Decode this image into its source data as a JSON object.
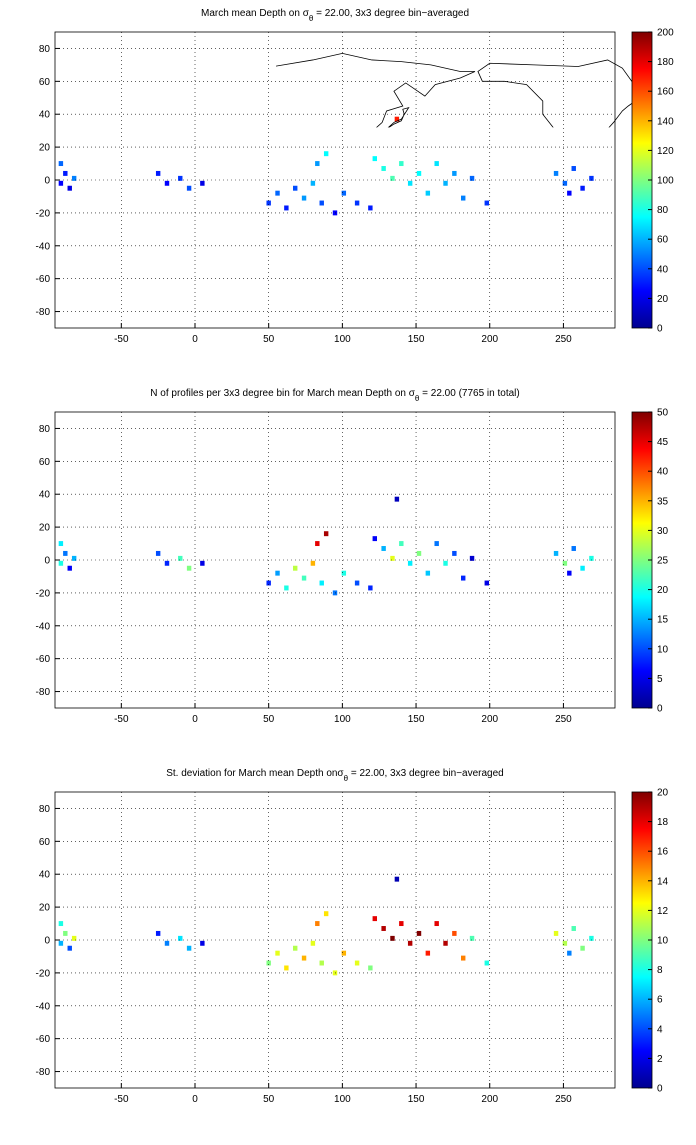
{
  "chart_data": [
    {
      "type": "heatmap",
      "colormap": "jet",
      "title": [
        "March mean Depth on σ",
        "θ",
        " = 22.00, 3x3 degree bin−averaged"
      ],
      "xlim": [
        -95,
        285
      ],
      "ylim": [
        -90,
        90
      ],
      "xticks": [
        -50,
        0,
        50,
        100,
        150,
        200,
        250
      ],
      "yticks": [
        -80,
        -60,
        -40,
        -20,
        0,
        20,
        40,
        60,
        80
      ],
      "grid": true,
      "clim": [
        0,
        200
      ],
      "cticks": [
        0,
        20,
        40,
        60,
        80,
        100,
        120,
        140,
        160,
        180,
        200
      ],
      "x": [
        -91,
        -88,
        -91,
        -85,
        -82,
        -25,
        -19,
        -10,
        -4,
        5,
        50,
        56,
        62,
        68,
        74,
        80,
        83,
        89,
        86,
        95,
        101,
        110,
        119,
        122,
        128,
        134,
        140,
        146,
        152,
        158,
        164,
        170,
        176,
        182,
        188,
        198,
        137,
        245,
        251,
        257,
        263,
        269,
        254
      ],
      "y": [
        10,
        4,
        -2,
        -5,
        1,
        4,
        -2,
        1,
        -5,
        -2,
        -14,
        -8,
        -17,
        -5,
        -11,
        -2,
        10,
        16,
        -14,
        -20,
        -8,
        -14,
        -17,
        13,
        7,
        1,
        10,
        -2,
        4,
        -8,
        10,
        -2,
        4,
        -11,
        1,
        -14,
        37,
        4,
        -2,
        7,
        -5,
        1,
        -8
      ],
      "values": [
        45,
        30,
        25,
        20,
        50,
        30,
        25,
        35,
        40,
        20,
        35,
        45,
        30,
        40,
        55,
        60,
        55,
        75,
        40,
        25,
        45,
        35,
        30,
        75,
        80,
        90,
        85,
        70,
        75,
        65,
        70,
        60,
        55,
        50,
        45,
        35,
        170,
        50,
        45,
        40,
        30,
        35,
        25
      ]
    },
    {
      "type": "heatmap",
      "colormap": "jet",
      "title": [
        "N of profiles per 3x3 degree bin for March mean Depth on σ",
        "θ",
        " = 22.00 (7765 in total)"
      ],
      "xlim": [
        -95,
        285
      ],
      "ylim": [
        -90,
        90
      ],
      "xticks": [
        -50,
        0,
        50,
        100,
        150,
        200,
        250
      ],
      "yticks": [
        -80,
        -60,
        -40,
        -20,
        0,
        20,
        40,
        60,
        80
      ],
      "grid": true,
      "clim": [
        0,
        50
      ],
      "cticks": [
        0,
        5,
        10,
        15,
        20,
        25,
        30,
        35,
        40,
        45,
        50
      ],
      "x": [
        -91,
        -88,
        -91,
        -85,
        -82,
        -25,
        -19,
        -10,
        -4,
        5,
        50,
        56,
        62,
        68,
        74,
        80,
        83,
        89,
        86,
        95,
        101,
        110,
        119,
        122,
        128,
        134,
        140,
        146,
        152,
        158,
        164,
        170,
        176,
        182,
        188,
        198,
        137,
        245,
        251,
        257,
        263,
        269,
        254
      ],
      "y": [
        10,
        4,
        -2,
        -5,
        1,
        4,
        -2,
        1,
        -5,
        -2,
        -14,
        -8,
        -17,
        -5,
        -11,
        -2,
        10,
        16,
        -14,
        -20,
        -8,
        -14,
        -17,
        13,
        7,
        1,
        10,
        -2,
        4,
        -8,
        10,
        -2,
        4,
        -11,
        1,
        -14,
        37,
        4,
        -2,
        7,
        -5,
        1,
        -8
      ],
      "values": [
        18,
        12,
        20,
        6,
        15,
        10,
        8,
        22,
        25,
        5,
        8,
        14,
        20,
        28,
        22,
        35,
        45,
        48,
        18,
        12,
        20,
        10,
        8,
        6,
        15,
        30,
        22,
        18,
        25,
        16,
        12,
        20,
        10,
        8,
        4,
        5,
        3,
        15,
        25,
        12,
        18,
        20,
        6
      ]
    },
    {
      "type": "heatmap",
      "colormap": "jet",
      "title": [
        "St. deviation for March mean Depth onσ",
        "θ",
        " = 22.00, 3x3 degree bin−averaged"
      ],
      "xlim": [
        -95,
        285
      ],
      "ylim": [
        -90,
        90
      ],
      "xticks": [
        -50,
        0,
        50,
        100,
        150,
        200,
        250
      ],
      "yticks": [
        -80,
        -60,
        -40,
        -20,
        0,
        20,
        40,
        60,
        80
      ],
      "grid": true,
      "clim": [
        0,
        20
      ],
      "cticks": [
        0,
        2,
        4,
        6,
        8,
        10,
        12,
        14,
        16,
        18,
        20
      ],
      "x": [
        -91,
        -88,
        -91,
        -85,
        -82,
        -25,
        -19,
        -10,
        -4,
        5,
        50,
        56,
        62,
        68,
        74,
        80,
        83,
        89,
        86,
        95,
        101,
        110,
        119,
        122,
        128,
        134,
        140,
        146,
        152,
        158,
        164,
        170,
        176,
        182,
        188,
        198,
        137,
        245,
        251,
        257,
        263,
        269,
        254
      ],
      "y": [
        10,
        4,
        -2,
        -5,
        1,
        4,
        -2,
        1,
        -5,
        -2,
        -14,
        -8,
        -17,
        -5,
        -11,
        -2,
        10,
        16,
        -14,
        -20,
        -8,
        -14,
        -17,
        13,
        7,
        1,
        10,
        -2,
        4,
        -8,
        10,
        -2,
        4,
        -11,
        1,
        -14,
        37,
        4,
        -2,
        7,
        -5,
        1,
        -8
      ],
      "values": [
        8,
        10,
        6,
        4,
        12,
        3,
        5,
        7,
        6,
        2,
        10,
        12,
        13,
        11,
        14,
        12,
        15,
        13,
        11,
        12,
        14,
        12,
        10,
        18,
        19,
        20,
        18,
        19,
        20,
        17,
        18,
        19,
        16,
        15,
        9,
        8,
        1,
        12,
        11,
        9,
        10,
        8,
        5
      ]
    }
  ]
}
